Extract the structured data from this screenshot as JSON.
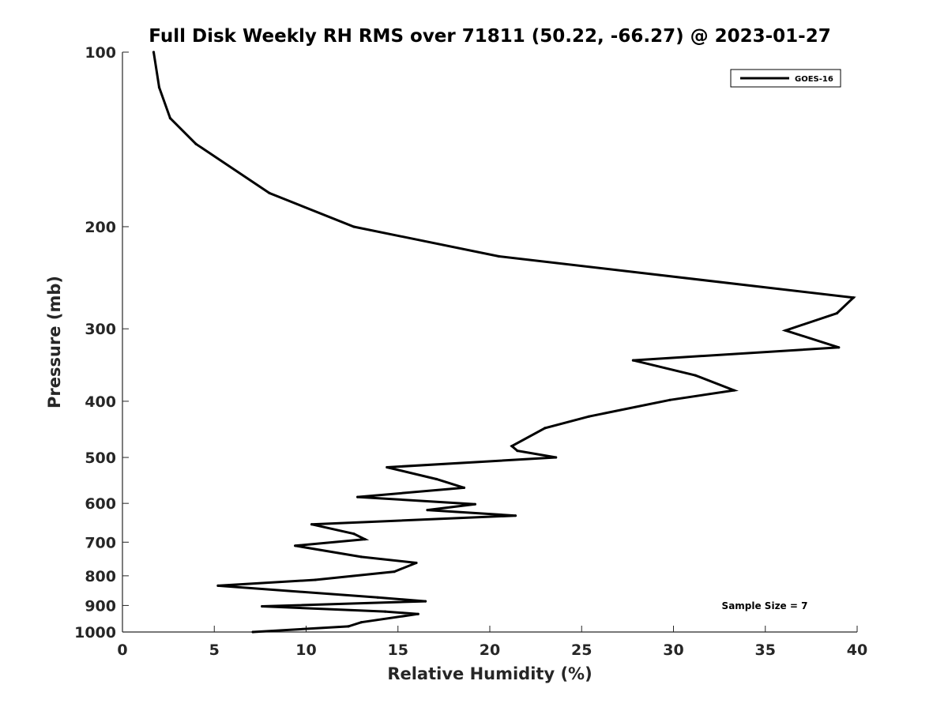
{
  "chart_data": {
    "type": "line",
    "title": "Full Disk Weekly RH RMS over 71811 (50.22, -66.27) @ 2023-01-27",
    "xlabel": "Relative Humidity (%)",
    "ylabel": "Pressure (mb)",
    "xlim": [
      0,
      40
    ],
    "ylim": [
      100,
      1000
    ],
    "yscale": "log",
    "y_reversed": true,
    "x_ticks": [
      0,
      5,
      10,
      15,
      20,
      25,
      30,
      35,
      40
    ],
    "y_ticks": [
      100,
      200,
      300,
      400,
      500,
      600,
      700,
      800,
      900,
      1000
    ],
    "grid": false,
    "legend_location": "top-right",
    "series": [
      {
        "name": "GOES-16",
        "color": "#000000",
        "x": [
          1.7,
          2.0,
          2.6,
          4.0,
          8.0,
          12.6,
          20.5,
          39.8,
          38.9,
          36.1,
          39.0,
          27.8,
          31.2,
          33.3,
          29.8,
          25.4,
          23.0,
          21.2,
          21.5,
          23.6,
          14.4,
          17.1,
          18.6,
          12.8,
          19.2,
          16.6,
          21.4,
          10.3,
          12.6,
          13.2,
          9.4,
          13.0,
          16.0,
          14.8,
          10.5,
          5.2,
          13.9,
          16.5,
          7.6,
          14.3,
          16.1,
          13.0,
          12.3,
          7.1
        ],
        "y": [
          100,
          115,
          130,
          144,
          175,
          200,
          225,
          265,
          282,
          302,
          323,
          340,
          361,
          383,
          398,
          425,
          445,
          478,
          487,
          500,
          520,
          545,
          564,
          585,
          602,
          616,
          630,
          652,
          677,
          692,
          710,
          742,
          760,
          787,
          813,
          832,
          872,
          885,
          903,
          922,
          931,
          962,
          978,
          1000
        ]
      }
    ],
    "annotations": [
      "Sample Size = 7"
    ]
  }
}
